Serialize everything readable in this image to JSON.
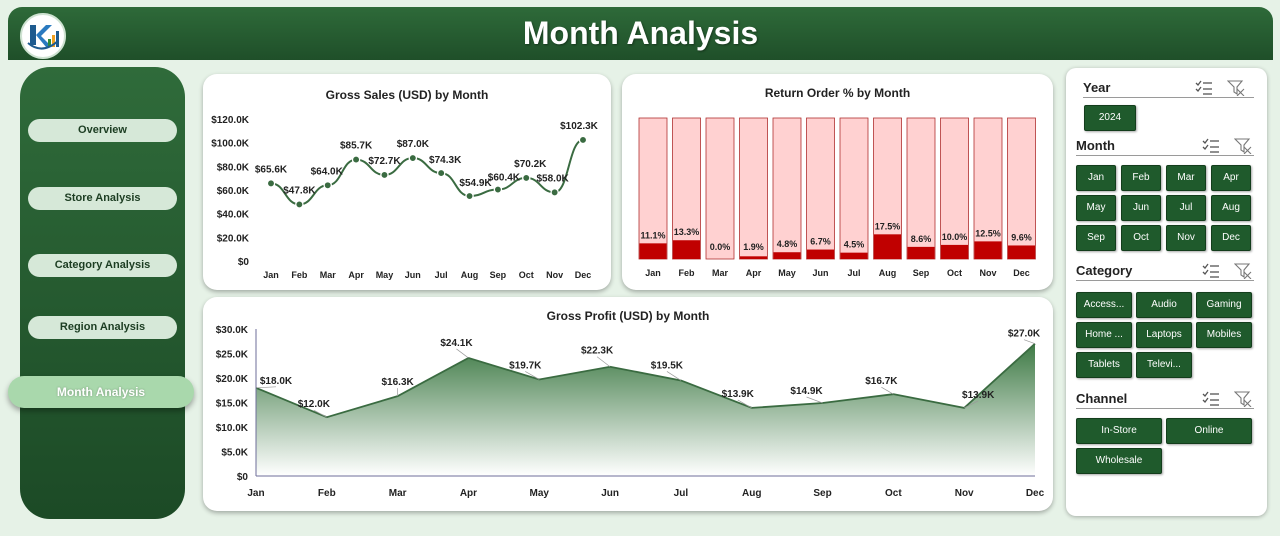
{
  "header": {
    "title": "Month Analysis"
  },
  "nav": {
    "items": [
      {
        "label": "Overview"
      },
      {
        "label": "Store Analysis"
      },
      {
        "label": "Category Analysis"
      },
      {
        "label": "Region Analysis"
      },
      {
        "label": "Month Analysis"
      }
    ],
    "active": "Month Analysis"
  },
  "colors": {
    "header_green": "#2e6a39",
    "nav_green": "#1f5a2c",
    "line_green": "#3a6b41",
    "return_bar_bg": "#ffd1d1",
    "return_bar_fill": "#c00000"
  },
  "chart_data": [
    {
      "type": "line",
      "title": "Gross Sales (USD) by Month",
      "categories": [
        "Jan",
        "Feb",
        "Mar",
        "Apr",
        "May",
        "Jun",
        "Jul",
        "Aug",
        "Sep",
        "Oct",
        "Nov",
        "Dec"
      ],
      "values": [
        65.6,
        47.8,
        64.0,
        85.7,
        72.7,
        87.0,
        74.3,
        54.9,
        60.4,
        70.2,
        58.0,
        102.3
      ],
      "data_labels": [
        "$65.6K",
        "$47.8K",
        "$64.0K",
        "$85.7K",
        "$72.7K",
        "$87.0K",
        "$74.3K",
        "$54.9K",
        "$60.4K",
        "$70.2K",
        "$58.0K",
        "$102.3K"
      ],
      "y_ticks": [
        "$0",
        "$20.0K",
        "$40.0K",
        "$60.0K",
        "$80.0K",
        "$100.0K",
        "$120.0K"
      ],
      "ylim": [
        0,
        120
      ],
      "grid": false,
      "legend": "none"
    },
    {
      "type": "bar",
      "title": "Return Order % by Month",
      "categories": [
        "Jan",
        "Feb",
        "Mar",
        "Apr",
        "May",
        "Jun",
        "Jul",
        "Aug",
        "Sep",
        "Oct",
        "Nov",
        "Dec"
      ],
      "values": [
        11.1,
        13.3,
        0.0,
        1.9,
        4.8,
        6.7,
        4.5,
        17.5,
        8.6,
        10.0,
        12.5,
        9.6
      ],
      "data_labels": [
        "11.1%",
        "13.3%",
        "0.0%",
        "1.9%",
        "4.8%",
        "6.7%",
        "4.5%",
        "17.5%",
        "8.6%",
        "10.0%",
        "12.5%",
        "9.6%"
      ],
      "ylim": [
        0,
        100
      ],
      "grid": false,
      "legend": "none"
    },
    {
      "type": "area",
      "title": "Gross Profit (USD) by Month",
      "categories": [
        "Jan",
        "Feb",
        "Mar",
        "Apr",
        "May",
        "Jun",
        "Jul",
        "Aug",
        "Sep",
        "Oct",
        "Nov",
        "Dec"
      ],
      "values": [
        18.0,
        12.0,
        16.3,
        24.1,
        19.7,
        22.3,
        19.5,
        13.9,
        14.9,
        16.7,
        13.9,
        27.0
      ],
      "data_labels": [
        "$18.0K",
        "$12.0K",
        "$16.3K",
        "$24.1K",
        "$19.7K",
        "$22.3K",
        "$19.5K",
        "$13.9K",
        "$14.9K",
        "$16.7K",
        "$13.9K",
        "$27.0K"
      ],
      "y_ticks": [
        "$0",
        "$5.0K",
        "$10.0K",
        "$15.0K",
        "$20.0K",
        "$25.0K",
        "$30.0K"
      ],
      "ylim": [
        0,
        30
      ],
      "grid": false,
      "legend": "none"
    }
  ],
  "slicers": {
    "year": {
      "title": "Year",
      "items": [
        "2024"
      ]
    },
    "month": {
      "title": "Month",
      "items": [
        "Jan",
        "Feb",
        "Mar",
        "Apr",
        "May",
        "Jun",
        "Jul",
        "Aug",
        "Sep",
        "Oct",
        "Nov",
        "Dec"
      ]
    },
    "category": {
      "title": "Category",
      "items": [
        "Access...",
        "Audio",
        "Gaming",
        "Home ...",
        "Laptops",
        "Mobiles",
        "Tablets",
        "Televi..."
      ]
    },
    "channel": {
      "title": "Channel",
      "items": [
        "In-Store",
        "Online",
        "Wholesale"
      ]
    }
  },
  "icons": {
    "multi_select": "multi-select-icon",
    "clear_filter": "clear-filter-icon"
  }
}
